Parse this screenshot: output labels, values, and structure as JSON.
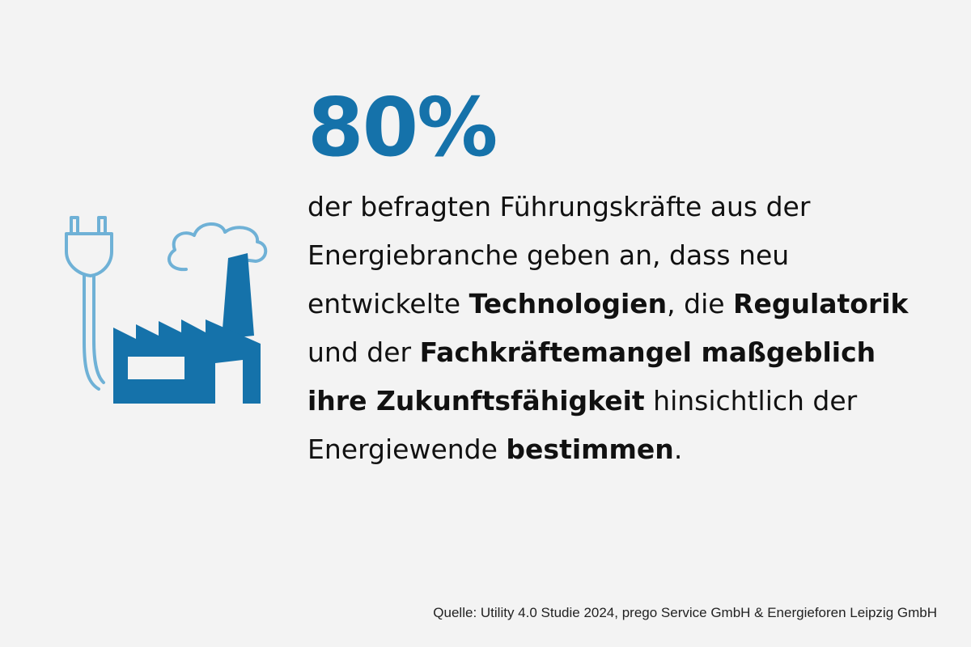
{
  "headline": {
    "value": "80%"
  },
  "statement": {
    "segments": [
      {
        "text": "der befragten Führungskräfte aus der Energiebranche geben an, dass neu entwickelte ",
        "bold": false
      },
      {
        "text": "Technologien",
        "bold": true
      },
      {
        "text": ", die ",
        "bold": false
      },
      {
        "text": "Regulatorik",
        "bold": true
      },
      {
        "text": " und der ",
        "bold": false
      },
      {
        "text": "Fachkräftemangel maßgeblich ihre Zukunftsfähigkeit",
        "bold": true
      },
      {
        "text": " hinsichtlich der Energiewende ",
        "bold": false
      },
      {
        "text": "bestimmen",
        "bold": true
      },
      {
        "text": ".",
        "bold": false
      }
    ]
  },
  "source": {
    "text": "Quelle: Utility 4.0 Studie 2024, prego Service GmbH & Energieforen Leipzig GmbH"
  },
  "illustration": {
    "icons": [
      "power-plug-icon",
      "cloud-icon",
      "factory-icon"
    ]
  },
  "colors": {
    "background": "#f3f3f3",
    "accent": "#1572aa",
    "accent_dark": "#0f5f94",
    "light_blue": "#6fb1d6",
    "text": "#111111"
  }
}
